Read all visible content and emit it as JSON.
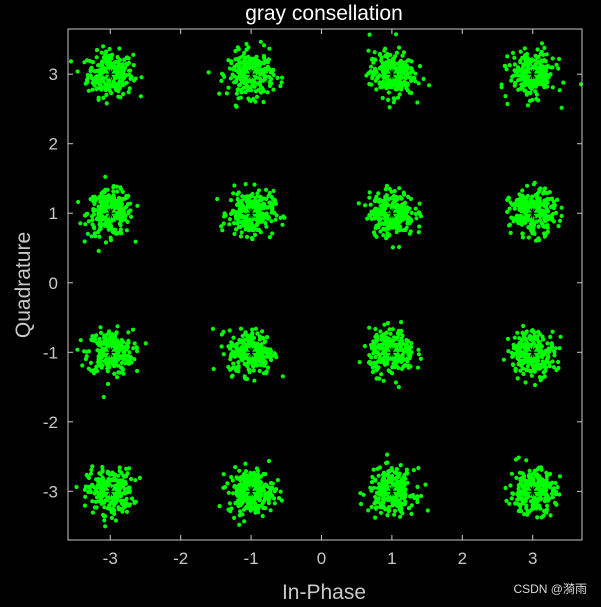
{
  "chart_data": {
    "type": "scatter",
    "title": "gray consellation",
    "xlabel": "In-Phase",
    "ylabel": "Quadrature",
    "xlim": [
      -3.6,
      3.7
    ],
    "ylim": [
      -3.7,
      3.65
    ],
    "xticks": [
      "-3",
      "-2",
      "-1",
      "0",
      "1",
      "2",
      "3"
    ],
    "yticks": [
      "3",
      "2",
      "1",
      "0",
      "-1",
      "-2",
      "-3"
    ],
    "grid": false,
    "legend": "none",
    "series": [
      {
        "color": "#00ff00",
        "marker": "dot",
        "x": [
          -3,
          -3,
          -3,
          -3,
          -1,
          -1,
          -1,
          -1,
          1,
          1,
          1,
          1,
          3,
          3,
          3,
          3
        ],
        "y": [
          3,
          1,
          -1,
          -3,
          3,
          1,
          -1,
          -3,
          3,
          1,
          -1,
          -3,
          3,
          1,
          -1,
          -3
        ],
        "spread": 0.16
      },
      {
        "color": "#000000",
        "marker": "asterisk",
        "x": [
          -3,
          -3,
          -3,
          -3,
          -1,
          -1,
          -1,
          -1,
          1,
          1,
          1,
          1,
          3,
          3,
          3,
          3
        ],
        "y": [
          3,
          1,
          -1,
          -3,
          3,
          1,
          -1,
          -3,
          3,
          1,
          -1,
          -3,
          3,
          1,
          -1,
          -3
        ]
      }
    ],
    "colors": {
      "background": "#000000",
      "axes": "#c8c8c8",
      "title": "#ffffff"
    }
  },
  "watermark": "CSDN @漪雨"
}
